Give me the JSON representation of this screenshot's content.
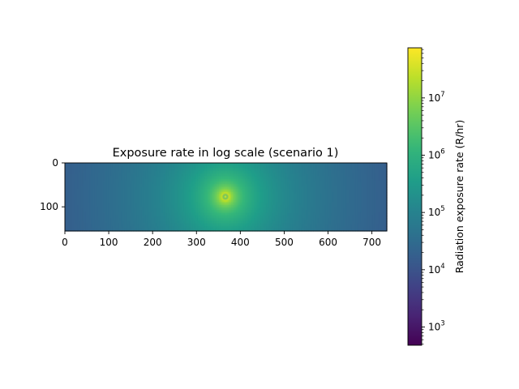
{
  "chart_data": {
    "type": "heatmap",
    "title": "Exposure rate in log scale (scenario 1)",
    "xlabel": "",
    "ylabel": "",
    "x_ticks": [
      0,
      100,
      200,
      300,
      400,
      500,
      600,
      700
    ],
    "y_ticks": [
      0,
      100
    ],
    "xlim": [
      0,
      734
    ],
    "ylim": [
      155,
      0
    ],
    "y_axis_inverted": true,
    "hotspot": {
      "x": 366,
      "y": 77
    },
    "colorbar": {
      "label": "Radiation exposure rate (R/hr)",
      "scale": "log",
      "colormap": "viridis",
      "vmin": 480,
      "vmax": 75000000,
      "major_ticks": [
        1000,
        10000,
        100000,
        1000000,
        10000000
      ],
      "major_tick_labels": [
        {
          "base": "10",
          "exp": "3"
        },
        {
          "base": "10",
          "exp": "4"
        },
        {
          "base": "10",
          "exp": "5"
        },
        {
          "base": "10",
          "exp": "6"
        },
        {
          "base": "10",
          "exp": "7"
        }
      ],
      "position": "right"
    },
    "grid": false
  }
}
